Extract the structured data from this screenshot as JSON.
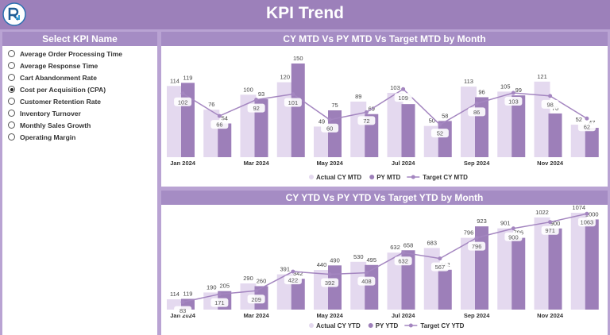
{
  "header": {
    "title": "KPI Trend"
  },
  "slicer": {
    "title": "Select KPI Name",
    "selected_index": 3,
    "items": [
      "Average Order Processing Time",
      "Average Response Time",
      "Cart Abandonment Rate",
      "Cost per Acquisition (CPA)",
      "Customer Retention Rate",
      "Inventory Turnover",
      "Monthly Sales Growth",
      "Operating Margin"
    ]
  },
  "chart_data": [
    {
      "type": "bar-line",
      "title": "CY MTD Vs PY MTD Vs Target MTD by Month",
      "categories": [
        "Jan 2024",
        null,
        "Mar 2024",
        null,
        "May 2024",
        null,
        "Jul 2024",
        null,
        "Sep 2024",
        null,
        "Nov 2024",
        null
      ],
      "series": [
        {
          "name": "Actual CY MTD",
          "kind": "bar",
          "color": "#e4d9ef",
          "values": [
            114,
            76,
            100,
            120,
            49,
            89,
            103,
            50,
            113,
            105,
            121,
            52
          ]
        },
        {
          "name": "PY MTD",
          "kind": "bar",
          "color": "#9d7fb9",
          "values": [
            119,
            54,
            93,
            150,
            75,
            69,
            85,
            58,
            96,
            99,
            70,
            47
          ]
        },
        {
          "name": "Target CY MTD",
          "kind": "line",
          "color": "#a486c0",
          "values": [
            102,
            66,
            92,
            101,
            60,
            72,
            109,
            52,
            86,
            103,
            98,
            62
          ]
        }
      ]
    },
    {
      "type": "bar-line",
      "title": "CY YTD Vs PY YTD Vs Target YTD by Month",
      "categories": [
        "Jan 2024",
        null,
        "Mar 2024",
        null,
        "May 2024",
        null,
        "Jul 2024",
        null,
        "Sep 2024",
        null,
        "Nov 2024",
        null
      ],
      "series": [
        {
          "name": "Actual CY YTD",
          "kind": "bar",
          "color": "#e4d9ef",
          "values": [
            114,
            190,
            290,
            391,
            440,
            530,
            632,
            683,
            796,
            901,
            1022,
            1074
          ]
        },
        {
          "name": "PY YTD",
          "kind": "bar",
          "color": "#9d7fb9",
          "values": [
            119,
            205,
            260,
            342,
            490,
            495,
            658,
            442,
            923,
            796,
            900,
            1000
          ]
        },
        {
          "name": "Target CY YTD",
          "kind": "line",
          "color": "#a486c0",
          "values": [
            83,
            171,
            209,
            422,
            392,
            408,
            632,
            567,
            796,
            900,
            971,
            1063
          ]
        }
      ]
    }
  ]
}
